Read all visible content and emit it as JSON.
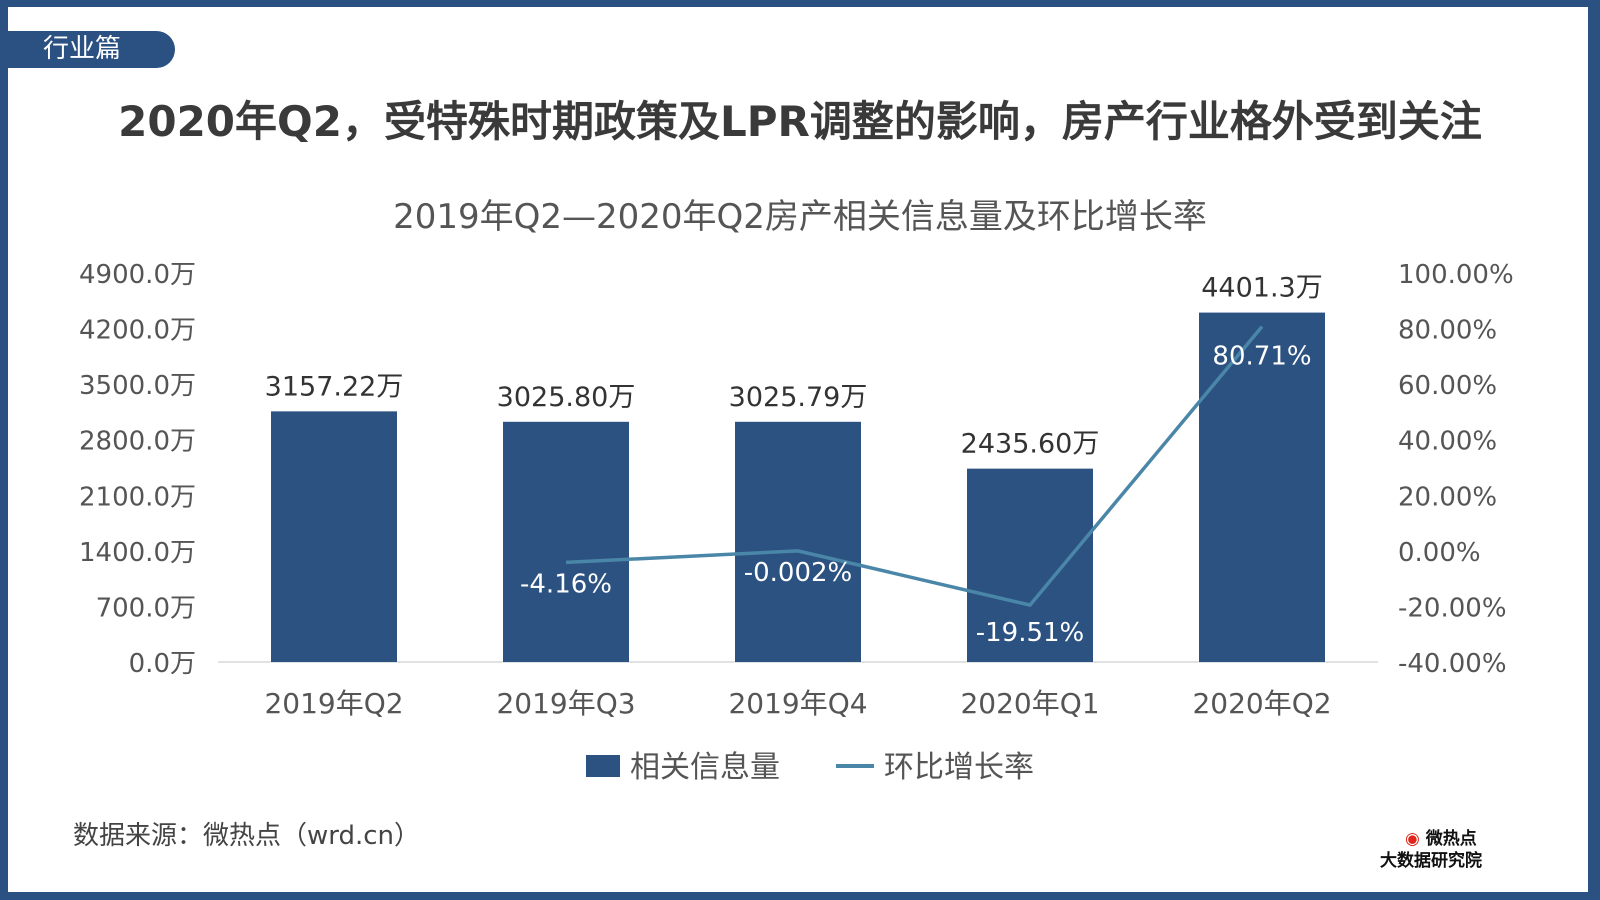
{
  "section_tag": "行业篇",
  "headline": "2020年Q2，受特殊时期政策及LPR调整的影响，房产行业格外受到关注",
  "source": "数据来源：微热点（wrd.cn）",
  "logo": {
    "line1": "微热点",
    "line2": "大数据研究院"
  },
  "colors": {
    "frame": "#2b5183",
    "bar": "#2c5282",
    "line": "#4a86a8"
  },
  "chart_data": {
    "type": "bar+line",
    "title": "2019年Q2—2020年Q2房产相关信息量及环比增长率",
    "categories": [
      "2019年Q2",
      "2019年Q3",
      "2019年Q4",
      "2020年Q1",
      "2020年Q2"
    ],
    "series": [
      {
        "name": "相关信息量",
        "type": "bar",
        "axis": "left",
        "values": [
          3157.22,
          3025.8,
          3025.79,
          2435.6,
          4401.3
        ],
        "labels": [
          "3157.22万",
          "3025.80万",
          "3025.79万",
          "2435.60万",
          "4401.3万"
        ]
      },
      {
        "name": "环比增长率",
        "type": "line",
        "axis": "right",
        "values": [
          null,
          -4.16,
          -0.002,
          -19.51,
          80.71
        ],
        "labels": [
          "",
          "-4.16%",
          "-0.002%",
          "-19.51%",
          "80.71%"
        ]
      }
    ],
    "left_axis": {
      "range": [
        0,
        4900
      ],
      "ticks": [
        "0.0万",
        "700.0万",
        "1400.0万",
        "2100.0万",
        "2800.0万",
        "3500.0万",
        "4200.0万",
        "4900.0万"
      ],
      "tick_values": [
        0,
        700,
        1400,
        2100,
        2800,
        3500,
        4200,
        4900
      ]
    },
    "right_axis": {
      "range": [
        -40,
        100
      ],
      "ticks": [
        "-40.00%",
        "-20.00%",
        "0.00%",
        "20.00%",
        "40.00%",
        "60.00%",
        "80.00%",
        "100.00%"
      ],
      "tick_values": [
        -40,
        -20,
        0,
        20,
        40,
        60,
        80,
        100
      ]
    },
    "grid": false,
    "legend": "bottom"
  }
}
